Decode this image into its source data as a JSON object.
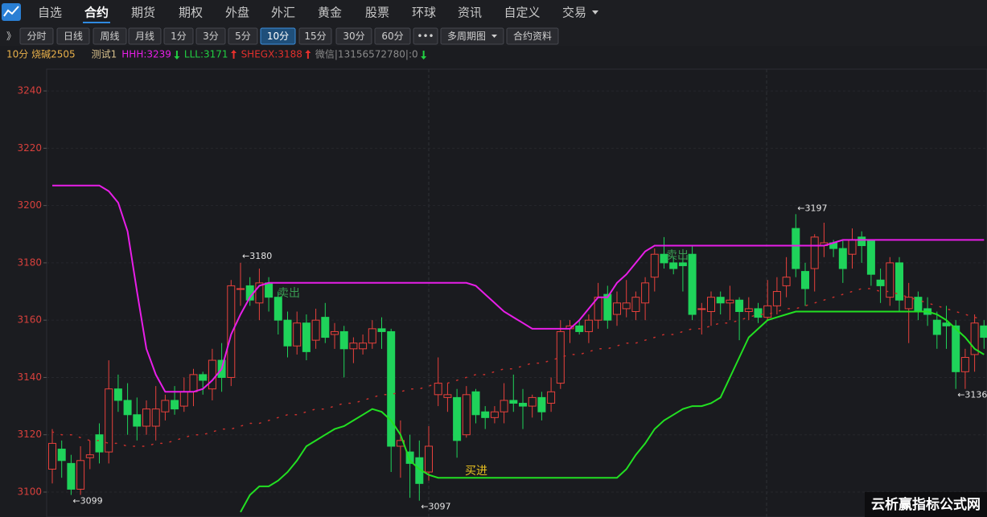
{
  "nav": {
    "items": [
      "自选",
      "合约",
      "期货",
      "期权",
      "外盘",
      "外汇",
      "黄金",
      "股票",
      "环球",
      "资讯",
      "自定义",
      "交易"
    ],
    "active": 1
  },
  "toolbar": {
    "items": [
      "》",
      "分时",
      "日线",
      "周线",
      "月线",
      "1分",
      "3分",
      "5分",
      "10分",
      "15分",
      "30分",
      "60分",
      "•••",
      "多周期图",
      "合约资料"
    ],
    "active": 8
  },
  "info": {
    "period": "10分 烧碱2505",
    "indicator": "测试1",
    "hhh": "HHH:3239",
    "lll": "LLL:3171",
    "shegx": "SHEGX:3188",
    "wechat": "微信|13156572780|:0"
  },
  "watermark": "云析赢指标公式网",
  "chart_data": {
    "type": "candlestick",
    "up_color": "#e8413c",
    "down_color": "#1fd35a",
    "ylim": [
      3091.3,
      3247.6
    ],
    "yticks": [
      3100,
      3120,
      3140,
      3160,
      3180,
      3200,
      3220,
      3240
    ],
    "open": [
      3108,
      3115,
      3110,
      3101,
      3112,
      3120,
      3114,
      3136,
      3132,
      3127,
      3123,
      3123,
      3128,
      3132,
      3130,
      3135,
      3141,
      3136,
      3146,
      3140,
      3171,
      3172,
      3166,
      3173,
      3168,
      3160,
      3151,
      3159,
      3153,
      3161,
      3155,
      3156,
      3150,
      3150,
      3152,
      3157,
      3156,
      3116,
      3114,
      3112,
      3107,
      3134,
      3133,
      3133,
      3120,
      3135,
      3128,
      3126,
      3128,
      3132,
      3131,
      3130,
      3133,
      3131,
      3138,
      3157,
      3158,
      3156,
      3160,
      3169,
      3162,
      3164,
      3163,
      3166,
      3175,
      3183,
      3180,
      3180,
      3183,
      3164,
      3163,
      3168,
      3166,
      3167,
      3163,
      3164,
      3161,
      3165,
      3172,
      3192,
      3177,
      3178,
      3186,
      3187,
      3185,
      3183,
      3189,
      3188,
      3174,
      3168,
      3180,
      3164,
      3168,
      3164,
      3160,
      3159,
      3158,
      3142,
      3148,
      3158
    ],
    "high": [
      3122,
      3118,
      3113,
      3116,
      3118,
      3124,
      3146,
      3141,
      3138,
      3133,
      3132,
      3137,
      3134,
      3137,
      3140,
      3143,
      3142,
      3150,
      3152,
      3174,
      3180,
      3175,
      3178,
      3175,
      3170,
      3163,
      3163,
      3162,
      3164,
      3166,
      3159,
      3158,
      3154,
      3155,
      3160,
      3161,
      3157,
      3125,
      3120,
      3118,
      3123,
      3147,
      3138,
      3136,
      3137,
      3136,
      3130,
      3130,
      3138,
      3141,
      3136,
      3134,
      3135,
      3140,
      3160,
      3160,
      3160,
      3162,
      3173,
      3172,
      3170,
      3174,
      3170,
      3175,
      3185,
      3189,
      3182,
      3182,
      3186,
      3166,
      3170,
      3170,
      3172,
      3168,
      3168,
      3166,
      3174,
      3175,
      3182,
      3197,
      3180,
      3190,
      3194,
      3188,
      3188,
      3192,
      3191,
      3188,
      3178,
      3182,
      3182,
      3173,
      3170,
      3168,
      3163,
      3165,
      3160,
      3150,
      3162,
      3160
    ],
    "low": [
      3103,
      3105,
      3099,
      3099,
      3108,
      3110,
      3110,
      3128,
      3120,
      3118,
      3120,
      3118,
      3125,
      3127,
      3128,
      3130,
      3134,
      3132,
      3135,
      3137,
      3165,
      3165,
      3160,
      3163,
      3155,
      3147,
      3148,
      3146,
      3150,
      3152,
      3150,
      3140,
      3145,
      3148,
      3150,
      3150,
      3107,
      3105,
      3098,
      3097,
      3104,
      3130,
      3128,
      3112,
      3119,
      3124,
      3122,
      3124,
      3124,
      3128,
      3122,
      3126,
      3125,
      3128,
      3136,
      3152,
      3155,
      3152,
      3157,
      3157,
      3158,
      3161,
      3160,
      3160,
      3170,
      3178,
      3176,
      3170,
      3160,
      3155,
      3158,
      3162,
      3160,
      3153,
      3160,
      3159,
      3160,
      3162,
      3168,
      3175,
      3165,
      3170,
      3182,
      3182,
      3173,
      3178,
      3180,
      3172,
      3166,
      3165,
      3163,
      3152,
      3160,
      3158,
      3150,
      3150,
      3136,
      3136,
      3142,
      3150
    ],
    "close": [
      3117,
      3111,
      3101,
      3111,
      3113,
      3114,
      3136,
      3132,
      3127,
      3123,
      3129,
      3129,
      3132,
      3129,
      3135,
      3141,
      3139,
      3146,
      3140,
      3172,
      3171,
      3167,
      3173,
      3168,
      3160,
      3151,
      3159,
      3149,
      3160,
      3154,
      3156,
      3150,
      3152,
      3152,
      3157,
      3156,
      3116,
      3118,
      3110,
      3103,
      3116,
      3138,
      3134,
      3118,
      3134,
      3127,
      3126,
      3128,
      3132,
      3131,
      3130,
      3133,
      3128,
      3135,
      3156,
      3158,
      3156,
      3160,
      3168,
      3160,
      3166,
      3166,
      3168,
      3173,
      3183,
      3180,
      3178,
      3179,
      3162,
      3164,
      3168,
      3166,
      3167,
      3163,
      3164,
      3161,
      3165,
      3170,
      3175,
      3178,
      3171,
      3189,
      3187,
      3185,
      3178,
      3188,
      3186,
      3176,
      3172,
      3180,
      3167,
      3168,
      3163,
      3162,
      3155,
      3158,
      3142,
      3147,
      3159,
      3154
    ],
    "series": [
      {
        "color": "#e81ee8",
        "values": [
          3207,
          3207,
          3207,
          3207,
          3207,
          3207,
          3205,
          3201,
          3191,
          3170,
          3150,
          3141,
          3135,
          3135,
          3135,
          3135,
          3136,
          3139,
          3143,
          3155,
          3162,
          3168,
          3172,
          3173,
          3173,
          3173,
          3173,
          3173,
          3173,
          3173,
          3173,
          3173,
          3173,
          3173,
          3173,
          3173,
          3173,
          3173,
          3173,
          3173,
          3173,
          3173,
          3173,
          3173,
          3173,
          3172,
          3169,
          3166,
          3163,
          3161,
          3159,
          3157,
          3157,
          3157,
          3157,
          3157,
          3160,
          3164,
          3168,
          3168,
          3173,
          3176,
          3180,
          3184,
          3186,
          3186,
          3186,
          3186,
          3186,
          3186,
          3186,
          3186,
          3186,
          3186,
          3186,
          3186,
          3186,
          3186,
          3186,
          3186,
          3186,
          3186,
          3186,
          3187,
          3188,
          3188,
          3188,
          3188,
          3188,
          3188,
          3188,
          3188,
          3188,
          3188,
          3188,
          3188,
          3188,
          3188,
          3188,
          3188
        ]
      },
      {
        "color": "#22e022",
        "values": [
          null,
          null,
          null,
          null,
          null,
          null,
          null,
          null,
          null,
          null,
          null,
          null,
          null,
          null,
          null,
          null,
          null,
          null,
          null,
          null,
          3093,
          3099,
          3102,
          3102,
          3104,
          3107,
          3111,
          3116,
          3118,
          3120,
          3122,
          3123,
          3125,
          3127,
          3129,
          3128,
          3125,
          3120,
          3111,
          3108,
          3106,
          3105,
          3105,
          3105,
          3105,
          3105,
          3105,
          3105,
          3105,
          3105,
          3105,
          3105,
          3105,
          3105,
          3105,
          3105,
          3105,
          3105,
          3105,
          3105,
          3105,
          3108,
          3113,
          3117,
          3122,
          3125,
          3127,
          3129,
          3130,
          3130,
          3131,
          3133,
          3140,
          3147,
          3154,
          3157,
          3160,
          3161,
          3162,
          3163,
          3163,
          3163,
          3163,
          3163,
          3163,
          3163,
          3163,
          3163,
          3163,
          3163,
          3163,
          3163,
          3163,
          3163,
          3162,
          3160,
          3157,
          3154,
          3150,
          3148
        ]
      },
      {
        "color": "#c8302c",
        "values": [
          3121,
          3120,
          3120,
          3119,
          3118,
          3118,
          3117,
          3117,
          3116,
          3116,
          3116,
          3117,
          3117,
          3118,
          3119,
          3120,
          3120,
          3121,
          3122,
          3122,
          3123,
          3124,
          3124,
          3125,
          3126,
          3127,
          3127,
          3128,
          3129,
          3129,
          3130,
          3131,
          3131,
          3132,
          3133,
          3134,
          3134,
          3135,
          3136,
          3136,
          3137,
          3138,
          3138,
          3139,
          3140,
          3141,
          3141,
          3142,
          3143,
          3143,
          3144,
          3145,
          3145,
          3146,
          3147,
          3148,
          3148,
          3149,
          3150,
          3150,
          3151,
          3152,
          3152,
          3153,
          3154,
          3155,
          3155,
          3156,
          3157,
          3157,
          3158,
          3159,
          3159,
          3160,
          3161,
          3162,
          3162,
          3163,
          3164,
          3164,
          3165,
          3166,
          3167,
          3168,
          3169,
          3170,
          3171,
          3171,
          3170,
          3170,
          3169,
          3168,
          3167,
          3166,
          3165,
          3164,
          3163,
          3162,
          3161,
          3160
        ]
      }
    ],
    "annotations": [
      {
        "text": "←3180"
      },
      {
        "text": "←3099"
      },
      {
        "text": "←3097"
      },
      {
        "text": "←3197"
      },
      {
        "text": "←3136"
      }
    ],
    "signals": [
      {
        "text": "卖出",
        "color": "#3a9a52"
      },
      {
        "text": "卖出",
        "color": "#3a9a52"
      },
      {
        "text": "买进",
        "color": "#e8c020"
      }
    ]
  }
}
